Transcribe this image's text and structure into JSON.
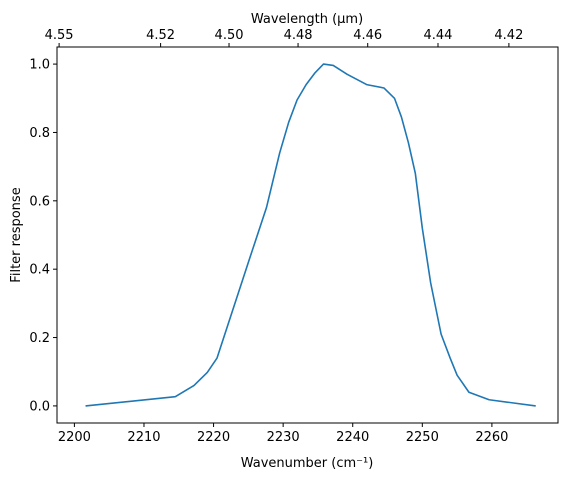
{
  "chart_data": {
    "type": "line",
    "xlabel": "Wavenumber (cm⁻¹)",
    "ylabel": "Filter response",
    "top_xlabel": "Wavelength (μm)",
    "xlim": [
      2197.5,
      2269.5
    ],
    "ylim": [
      -0.05,
      1.05
    ],
    "x_ticks": [
      2200,
      2210,
      2220,
      2230,
      2240,
      2250,
      2260
    ],
    "x_tick_labels": [
      "2200",
      "2210",
      "2220",
      "2230",
      "2240",
      "2250",
      "2260"
    ],
    "y_ticks": [
      0.0,
      0.2,
      0.4,
      0.6,
      0.8,
      1.0
    ],
    "y_tick_labels": [
      "0.0",
      "0.2",
      "0.4",
      "0.6",
      "0.8",
      "1.0"
    ],
    "top_ticks_um": [
      4.55,
      4.52,
      4.5,
      4.48,
      4.46,
      4.44,
      4.42
    ],
    "top_tick_labels": [
      "4.55",
      "4.52",
      "4.50",
      "4.48",
      "4.46",
      "4.44",
      "4.42"
    ],
    "grid": false,
    "line_color": "#1f77b4",
    "series": [
      {
        "x": [
          2201.6,
          2214.5,
          2217.2,
          2219.1,
          2220.5,
          2225.0,
          2227.6,
          2229.5,
          2230.8,
          2232.0,
          2233.3,
          2234.6,
          2235.8,
          2237.2,
          2239.2,
          2242.0,
          2244.5,
          2246.0,
          2247.0,
          2248.0,
          2249.0,
          2250.0,
          2251.2,
          2252.7,
          2254.0,
          2255.0,
          2256.7,
          2259.6,
          2266.3
        ],
        "y": [
          0.0,
          0.027,
          0.06,
          0.098,
          0.14,
          0.42,
          0.58,
          0.74,
          0.83,
          0.895,
          0.94,
          0.975,
          1.0,
          0.996,
          0.97,
          0.94,
          0.93,
          0.9,
          0.845,
          0.77,
          0.68,
          0.52,
          0.36,
          0.21,
          0.14,
          0.09,
          0.04,
          0.018,
          0.0
        ]
      }
    ]
  }
}
